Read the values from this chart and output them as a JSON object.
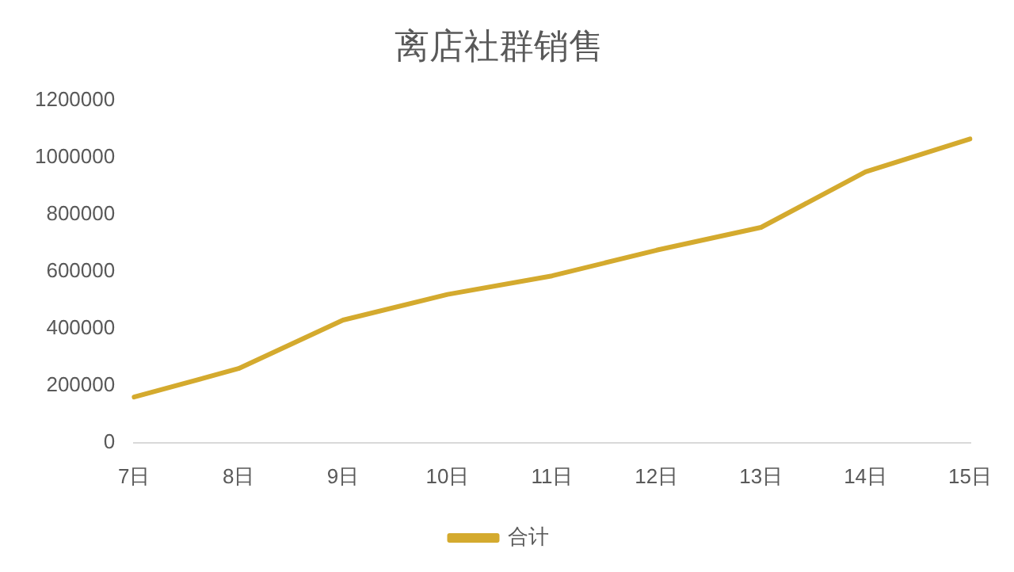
{
  "chart_data": {
    "type": "line",
    "title": "离店社群销售",
    "categories": [
      "7日",
      "8日",
      "9日",
      "10日",
      "11日",
      "12日",
      "13日",
      "14日",
      "15日"
    ],
    "series": [
      {
        "name": "合计",
        "color": "#d4aa2e",
        "values": [
          160000,
          260000,
          430000,
          520000,
          585000,
          675000,
          755000,
          950000,
          1065000
        ]
      }
    ],
    "ylim": [
      0,
      1200000
    ],
    "yticks": [
      0,
      200000,
      400000,
      600000,
      800000,
      1000000,
      1200000
    ],
    "grid": false,
    "legend": "bottom",
    "marker": "none",
    "line_style": "solid"
  }
}
